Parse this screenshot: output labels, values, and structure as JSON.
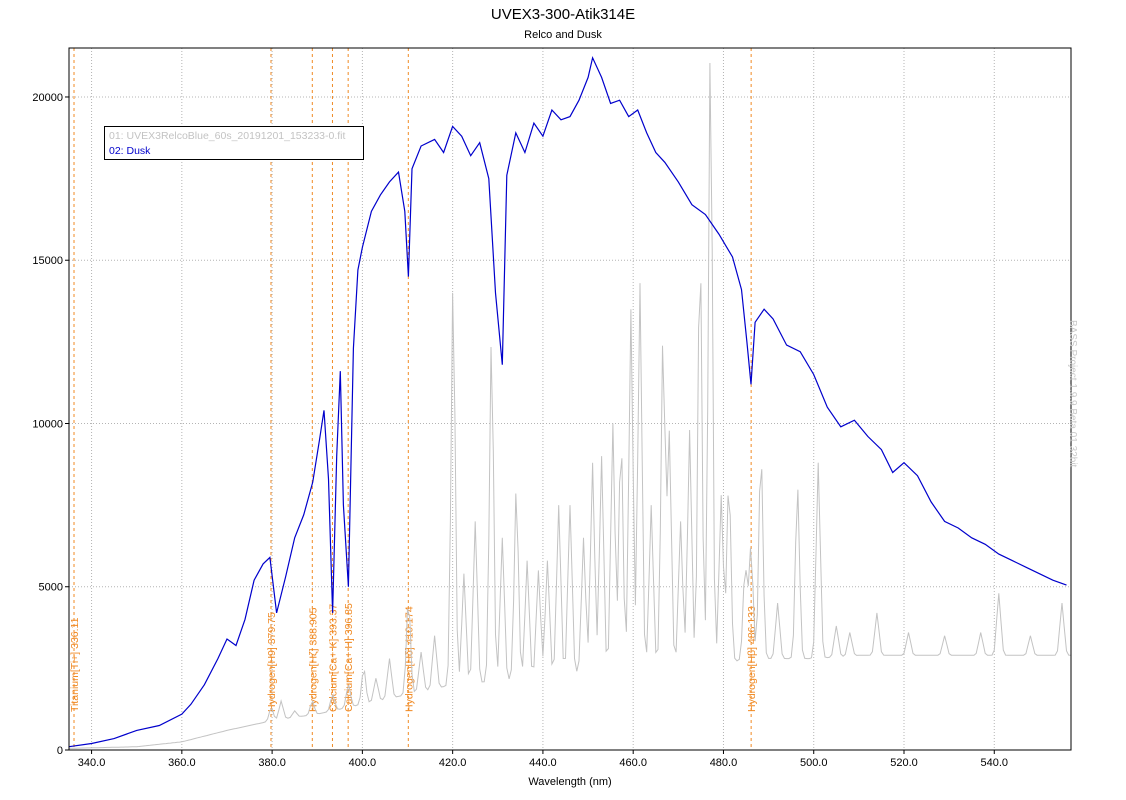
{
  "chart_data": {
    "type": "line",
    "title": "UVEX3-300-Atik314E",
    "subtitle": "Relco and Dusk",
    "xlabel": "Wavelength (nm)",
    "ylabel": "",
    "xlim": [
      335.0,
      557.0
    ],
    "ylim": [
      0,
      21500
    ],
    "grid": true,
    "legend_position": "top-left",
    "x_ticks": [
      "340.0",
      "360.0",
      "380.0",
      "400.0",
      "420.0",
      "440.0",
      "460.0",
      "480.0",
      "500.0",
      "520.0",
      "540.0"
    ],
    "x_tick_values": [
      340,
      360,
      380,
      400,
      420,
      440,
      460,
      480,
      500,
      520,
      540
    ],
    "y_ticks": [
      "0",
      "5000",
      "10000",
      "15000",
      "20000"
    ],
    "y_tick_values": [
      0,
      5000,
      10000,
      15000,
      20000
    ],
    "watermark": "BASS Project 1.9.9 Beta 01 32bit",
    "series": [
      {
        "name": "01: UVEX3RelcoBlue_60s_20191201_153233-0.fit",
        "color": "#c3c3c3",
        "baseline_x": [
          335,
          350,
          360,
          370,
          380,
          390,
          400,
          410,
          420,
          430,
          440,
          450,
          460,
          470,
          480,
          490,
          500,
          510,
          520,
          530,
          540,
          550,
          557
        ],
        "baseline_y": [
          50,
          100,
          250,
          600,
          900,
          1100,
          1400,
          1700,
          2000,
          2100,
          2300,
          2400,
          2500,
          2600,
          2700,
          2800,
          2800,
          2900,
          2900,
          2900,
          2900,
          2900,
          2900
        ],
        "peaks_x": [
          379.8,
          382,
          385,
          388.9,
          393.4,
          396.9,
          400.3,
          403,
          406,
          410.2,
          413,
          416,
          420.1,
          422.5,
          425,
          428.6,
          431,
          434.1,
          436.5,
          439,
          441,
          443.5,
          446,
          449,
          451,
          453,
          455.5,
          457.3,
          459.5,
          461.5,
          464,
          466.6,
          468,
          470.5,
          472.5,
          474.8,
          477.1,
          479.5,
          481.2,
          484.8,
          486.1,
          488.3,
          492,
          496.4,
          501,
          505,
          508,
          514,
          521,
          529,
          537,
          541,
          548,
          555
        ],
        "peaks_y": [
          1300,
          1500,
          1200,
          1500,
          1700,
          2000,
          2500,
          2200,
          2800,
          4600,
          3000,
          3500,
          14300,
          5400,
          7000,
          12600,
          6500,
          8000,
          5800,
          5500,
          5800,
          7500,
          7500,
          6500,
          8800,
          9000,
          10000,
          9600,
          13500,
          14300,
          7500,
          12600,
          9700,
          7000,
          9800,
          15500,
          21500,
          7800,
          8300,
          5600,
          6200,
          9200,
          4500,
          8100,
          8800,
          3800,
          3600,
          4200,
          3600,
          3500,
          3600,
          4800,
          3500,
          4500
        ]
      },
      {
        "name": "02: Dusk",
        "color": "#0000cc",
        "x": [
          335,
          340,
          345,
          350,
          355,
          360,
          362,
          365,
          368,
          370,
          372,
          374,
          376,
          378,
          379.5,
          381,
          383,
          385,
          387,
          389,
          390.5,
          391.5,
          392.5,
          393.4,
          394.3,
          395.1,
          395.8,
          396.9,
          398,
          399,
          400,
          402,
          404,
          406,
          408,
          409.4,
          410.2,
          411,
          413,
          416,
          418,
          420,
          422,
          424,
          426,
          428,
          429.5,
          431,
          432,
          434,
          436,
          438,
          440,
          442,
          444,
          446,
          448,
          450,
          451,
          453,
          455,
          457,
          459,
          461,
          463,
          465,
          467,
          470,
          473,
          476,
          479,
          482,
          484,
          485.2,
          486.1,
          487,
          489,
          491,
          494,
          497,
          500,
          503,
          506,
          509,
          512,
          515,
          517.5,
          520,
          523,
          526,
          529,
          532,
          535,
          538,
          541,
          544,
          547,
          550,
          553,
          556
        ],
        "y": [
          100,
          200,
          350,
          600,
          750,
          1100,
          1400,
          2000,
          2800,
          3400,
          3200,
          4000,
          5200,
          5700,
          5900,
          4200,
          5300,
          6500,
          7200,
          8200,
          9500,
          10400,
          8300,
          4200,
          9000,
          11600,
          7500,
          5000,
          12300,
          14700,
          15400,
          16500,
          17000,
          17400,
          17700,
          16500,
          14500,
          17800,
          18500,
          18700,
          18300,
          19100,
          18800,
          18200,
          18600,
          17500,
          14000,
          11800,
          17600,
          18900,
          18300,
          19200,
          18800,
          19600,
          19300,
          19400,
          19900,
          20600,
          21200,
          20600,
          19800,
          19900,
          19400,
          19600,
          18900,
          18300,
          18000,
          17400,
          16700,
          16400,
          15800,
          15100,
          14100,
          12500,
          11200,
          13100,
          13500,
          13200,
          12400,
          12200,
          11500,
          10500,
          9900,
          10100,
          9600,
          9200,
          8500,
          8800,
          8400,
          7600,
          7000,
          6800,
          6500,
          6300,
          6000,
          5800,
          5600,
          5400,
          5200,
          5050
        ]
      }
    ],
    "markers": [
      {
        "x": 336.11,
        "label": "Titanium[Ti+] 336.11"
      },
      {
        "x": 379.75,
        "label": "Hydrogen[H9] 379.75"
      },
      {
        "x": 388.905,
        "label": "Hydrogen[Hζ] 388.905"
      },
      {
        "x": 393.37,
        "label": "Calcium[Ca+ K] 393.37"
      },
      {
        "x": 396.85,
        "label": "Calcium[Ca+ H] 396.85"
      },
      {
        "x": 410.174,
        "label": "Hydrogen[Hδ] 410.174"
      },
      {
        "x": 486.133,
        "label": "Hydrogen[Hβ] 486.133"
      }
    ],
    "marker_color": "#f08a24",
    "grid_color": "#b4b4b4"
  }
}
